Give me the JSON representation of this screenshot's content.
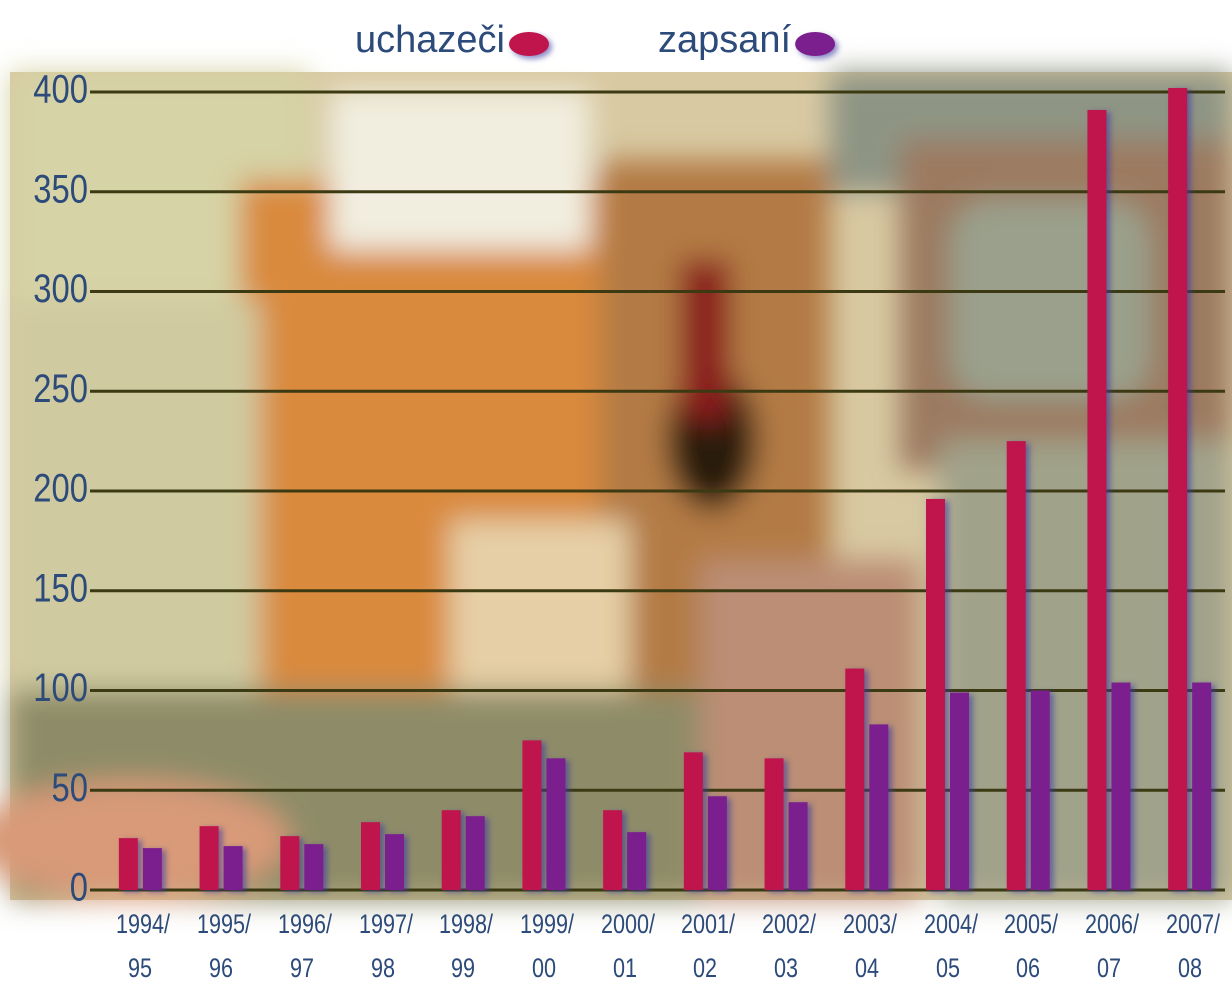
{
  "chart_data": {
    "type": "bar",
    "categories": [
      "1994/ 95",
      "1995/ 96",
      "1996/ 97",
      "1997/ 98",
      "1998/ 99",
      "1999/ 00",
      "2000/ 01",
      "2001/ 02",
      "2002/ 03",
      "2003/ 04",
      "2004/ 05",
      "2005/ 06",
      "2006/ 07",
      "2007/ 08"
    ],
    "series": [
      {
        "name": "uchazeči",
        "color": "#c0154c",
        "values": [
          26,
          32,
          27,
          34,
          40,
          75,
          40,
          69,
          66,
          111,
          196,
          225,
          391,
          402
        ]
      },
      {
        "name": "zapsaní",
        "color": "#7b1f8e",
        "values": [
          21,
          22,
          23,
          28,
          37,
          66,
          29,
          47,
          44,
          83,
          99,
          100,
          104,
          104
        ]
      }
    ],
    "ylim": [
      0,
      400
    ],
    "yticks": [
      0,
      50,
      100,
      150,
      200,
      250,
      300,
      350,
      400
    ],
    "grid": true
  }
}
